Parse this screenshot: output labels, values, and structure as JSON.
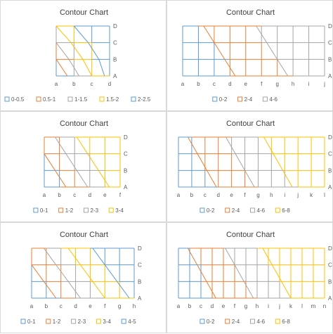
{
  "colors": {
    "blue": "#5b9bd5",
    "orange": "#ed7d31",
    "gray": "#a5a5a5",
    "yellow": "#ffc000",
    "axis_text": "#595959",
    "title_text": "#404040"
  },
  "chart_data": [
    {
      "type": "surface-contour",
      "title": "Contour Chart",
      "categories": [
        "a",
        "b",
        "c",
        "d"
      ],
      "series_axis": [
        "A",
        "B",
        "C",
        "D"
      ],
      "legend": [
        "0-0.5",
        "0.5-1",
        "1-1.5",
        "1.5-2",
        "2-2.5"
      ],
      "legend_colors": [
        "#5b9bd5",
        "#ed7d31",
        "#a5a5a5",
        "#ffc000",
        "#5b9bd5"
      ],
      "values": [
        [
          0.0,
          0.8,
          1.5,
          2.2
        ],
        [
          0.5,
          1.2,
          1.8,
          2.3
        ],
        [
          1.0,
          1.6,
          2.1,
          2.4
        ],
        [
          1.5,
          2.0,
          2.3,
          2.5
        ]
      ]
    },
    {
      "type": "surface-contour",
      "title": "Contour Chart",
      "categories": [
        "a",
        "b",
        "c",
        "d",
        "e",
        "f",
        "g",
        "h",
        "i",
        "j"
      ],
      "series_axis": [
        "A",
        "B",
        "C",
        "D"
      ],
      "legend": [
        "0-2",
        "2-4",
        "4-6"
      ],
      "legend_colors": [
        "#5b9bd5",
        "#ed7d31",
        "#a5a5a5"
      ],
      "values": [
        [
          0.0,
          0.6,
          1.2,
          1.8,
          2.4,
          3.0,
          3.6,
          4.2,
          4.8,
          5.4
        ],
        [
          0.4,
          1.0,
          1.6,
          2.2,
          2.8,
          3.4,
          4.0,
          4.6,
          5.2,
          5.8
        ],
        [
          0.8,
          1.4,
          2.0,
          2.6,
          3.2,
          3.8,
          4.4,
          5.0,
          5.6,
          6.0
        ],
        [
          1.2,
          1.8,
          2.4,
          3.0,
          3.6,
          4.2,
          4.8,
          5.4,
          6.0,
          6.0
        ]
      ]
    },
    {
      "type": "surface-contour",
      "title": "Contour Chart",
      "categories": [
        "a",
        "b",
        "c",
        "d",
        "e",
        "f"
      ],
      "series_axis": [
        "A",
        "B",
        "C",
        "D"
      ],
      "legend": [
        "0-1",
        "1-2",
        "2-3",
        "3-4"
      ],
      "legend_colors": [
        "#5b9bd5",
        "#ed7d31",
        "#a5a5a5",
        "#ffc000"
      ],
      "values": [
        [
          0.0,
          0.7,
          1.4,
          2.1,
          2.8,
          3.5
        ],
        [
          0.5,
          1.2,
          1.9,
          2.6,
          3.3,
          4.0
        ],
        [
          1.0,
          1.7,
          2.4,
          3.1,
          3.8,
          4.0
        ],
        [
          1.5,
          2.2,
          2.9,
          3.6,
          4.0,
          4.0
        ]
      ]
    },
    {
      "type": "surface-contour",
      "title": "Contour Chart",
      "categories": [
        "a",
        "b",
        "c",
        "d",
        "e",
        "f",
        "g",
        "h",
        "i",
        "j",
        "k",
        "l"
      ],
      "series_axis": [
        "A",
        "B",
        "C",
        "D"
      ],
      "legend": [
        "0-2",
        "2-4",
        "4-6",
        "6-8"
      ],
      "legend_colors": [
        "#5b9bd5",
        "#ed7d31",
        "#a5a5a5",
        "#ffc000"
      ],
      "values": [
        [
          0.0,
          0.7,
          1.4,
          2.1,
          2.8,
          3.5,
          4.2,
          4.9,
          5.6,
          6.3,
          7.0,
          7.5
        ],
        [
          0.5,
          1.2,
          1.9,
          2.6,
          3.3,
          4.0,
          4.7,
          5.4,
          6.1,
          6.8,
          7.5,
          8.0
        ],
        [
          1.0,
          1.7,
          2.4,
          3.1,
          3.8,
          4.5,
          5.2,
          5.9,
          6.6,
          7.3,
          8.0,
          8.0
        ],
        [
          1.5,
          2.2,
          2.9,
          3.6,
          4.3,
          5.0,
          5.7,
          6.4,
          7.1,
          7.8,
          8.0,
          8.0
        ]
      ]
    },
    {
      "type": "surface-contour",
      "title": "Contour Chart",
      "categories": [
        "a",
        "b",
        "c",
        "d",
        "e",
        "f",
        "g",
        "h"
      ],
      "series_axis": [
        "A",
        "B",
        "C",
        "D"
      ],
      "legend": [
        "0-1",
        "1-2",
        "2-3",
        "3-4",
        "4-5"
      ],
      "legend_colors": [
        "#5b9bd5",
        "#ed7d31",
        "#a5a5a5",
        "#ffc000",
        "#5b9bd5"
      ],
      "values": [
        [
          0.0,
          0.6,
          1.2,
          1.8,
          2.4,
          3.0,
          3.6,
          4.2
        ],
        [
          0.5,
          1.1,
          1.7,
          2.3,
          2.9,
          3.5,
          4.1,
          4.7
        ],
        [
          1.0,
          1.6,
          2.2,
          2.8,
          3.4,
          4.0,
          4.6,
          5.0
        ],
        [
          1.5,
          2.1,
          2.7,
          3.3,
          3.9,
          4.5,
          5.0,
          5.0
        ]
      ]
    },
    {
      "type": "surface-contour",
      "title": "Contour Chart",
      "categories": [
        "a",
        "b",
        "c",
        "d",
        "e",
        "f",
        "g",
        "h",
        "i",
        "j",
        "k",
        "l",
        "m",
        "n"
      ],
      "series_axis": [
        "A",
        "B",
        "C",
        "D"
      ],
      "legend": [
        "0-2",
        "2-4",
        "4-6",
        "6-8"
      ],
      "legend_colors": [
        "#5b9bd5",
        "#ed7d31",
        "#a5a5a5",
        "#ffc000"
      ],
      "values": [
        [
          0.0,
          0.6,
          1.2,
          1.8,
          2.4,
          3.0,
          3.6,
          4.2,
          4.8,
          5.4,
          6.0,
          6.6,
          7.2,
          7.8
        ],
        [
          0.5,
          1.1,
          1.7,
          2.3,
          2.9,
          3.5,
          4.1,
          4.7,
          5.3,
          5.9,
          6.5,
          7.1,
          7.7,
          8.0
        ],
        [
          1.0,
          1.6,
          2.2,
          2.8,
          3.4,
          4.0,
          4.6,
          5.2,
          5.8,
          6.4,
          7.0,
          7.6,
          8.0,
          8.0
        ],
        [
          1.5,
          2.1,
          2.7,
          3.3,
          3.9,
          4.5,
          5.1,
          5.7,
          6.3,
          6.9,
          7.5,
          8.0,
          8.0,
          8.0
        ]
      ]
    }
  ]
}
